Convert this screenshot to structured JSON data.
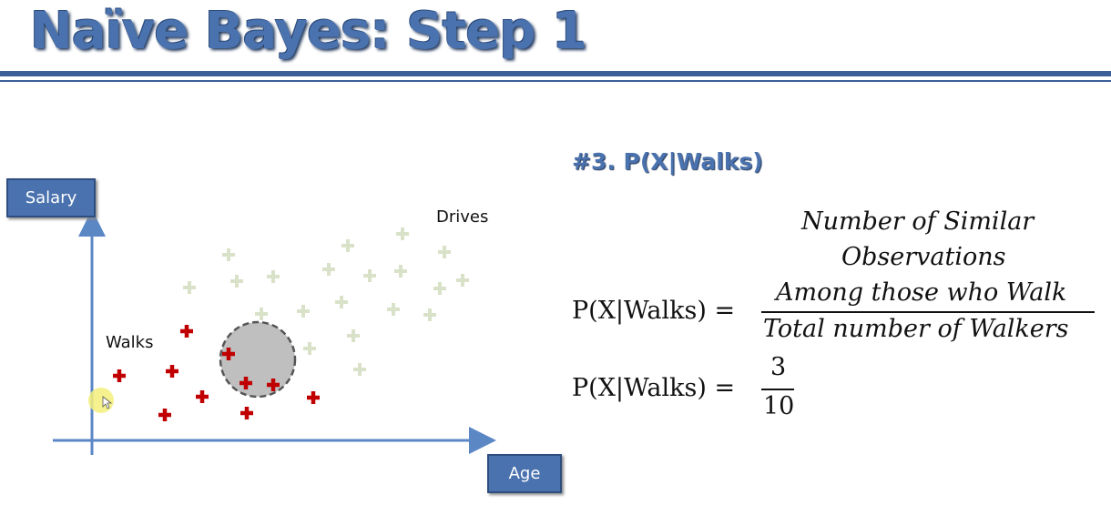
{
  "title": "Naïve Bayes: Step 1",
  "chart": {
    "y_axis_label": "Salary",
    "x_axis_label": "Age",
    "walks_label": "Walks",
    "drives_label": "Drives",
    "walks_color": "#c00000",
    "drives_color": "#d9e2c8",
    "circle_color": "#bfbfbf",
    "axis_color": "#5b87c5"
  },
  "formula": {
    "heading": "#3. P(X|Walks)",
    "lhs": "P(X|Walks) =",
    "num_line1": "Number of Similar",
    "num_line2": "Observations",
    "num_line3": "Among those who Walk",
    "denominator": "Total number of Walkers",
    "lhs2": "P(X|Walks) =",
    "num2": "3",
    "den2": "10"
  }
}
